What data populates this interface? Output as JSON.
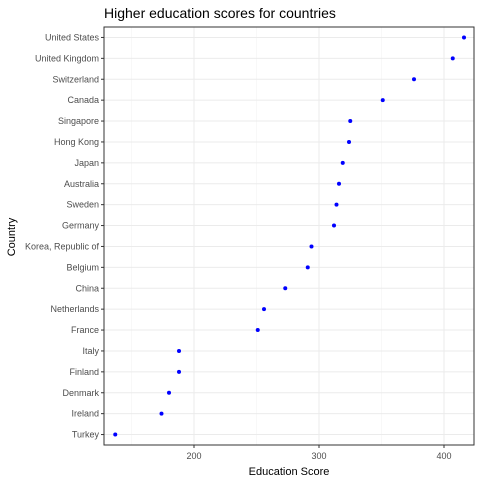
{
  "chart_data": {
    "type": "scatter",
    "title": "Higher education scores for countries",
    "xlabel": "Education Score",
    "ylabel": "Country",
    "xlim": [
      128,
      424
    ],
    "x_ticks": [
      200,
      300,
      400
    ],
    "grid": true,
    "point_color": "#0000FF",
    "categories": [
      "United States",
      "United Kingdom",
      "Switzerland",
      "Canada",
      "Singapore",
      "Hong Kong",
      "Japan",
      "Australia",
      "Sweden",
      "Germany",
      "Korea, Republic of",
      "Belgium",
      "China",
      "Netherlands",
      "France",
      "Italy",
      "Finland",
      "Denmark",
      "Ireland",
      "Turkey"
    ],
    "values": [
      416,
      407,
      376,
      351,
      325,
      324,
      319,
      316,
      314,
      312,
      294,
      291,
      273,
      256,
      251,
      188,
      188,
      180,
      174,
      137
    ]
  }
}
